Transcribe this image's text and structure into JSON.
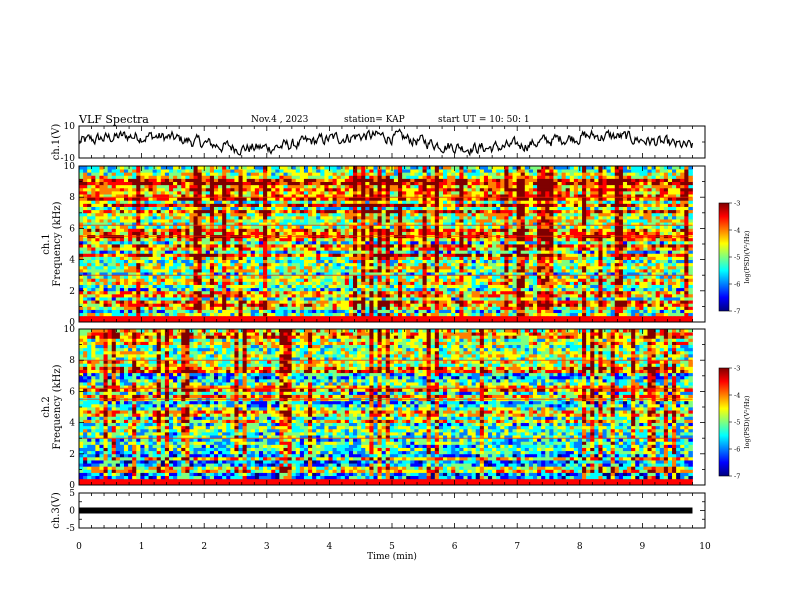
{
  "header": {
    "title": "VLF Spectra",
    "date": "Nov.4 , 2023",
    "station": "station= KAP",
    "start": "start UT = 10: 50: 1"
  },
  "colors": {
    "jet": [
      "#00007f",
      "#0000ff",
      "#007fff",
      "#00ffff",
      "#7fff7f",
      "#ffff00",
      "#ff7f00",
      "#ff0000",
      "#7f0000"
    ],
    "trace": "#000000",
    "axis": "#000000"
  },
  "chart_data": [
    {
      "type": "line",
      "name": "ch1-waveform",
      "ylabel": "ch.1(V)",
      "ylim": [
        -10,
        10
      ],
      "yticks": [
        "10",
        "-10"
      ],
      "xlim": [
        0,
        10
      ],
      "x_end": 9.8
    },
    {
      "type": "heatmap",
      "name": "ch1-spectrogram",
      "ylabel": "ch.1\nFrequency (kHz)",
      "ylabel_lines": [
        "ch.1",
        "Frequency (kHz)"
      ],
      "ylim": [
        0,
        10
      ],
      "yticks": [
        "0",
        "2",
        "4",
        "6",
        "8",
        "10"
      ],
      "xlim": [
        0,
        10
      ],
      "x_end": 9.8,
      "colorbar": {
        "label": "log(PSD)(V²/Hz)",
        "range": [
          -7,
          -3
        ],
        "ticks": [
          "-3",
          "-4",
          "-5",
          "-6",
          "-7"
        ]
      }
    },
    {
      "type": "heatmap",
      "name": "ch2-spectrogram",
      "ylabel_lines": [
        "ch.2",
        "Frequency (kHz)"
      ],
      "ylim": [
        0,
        10
      ],
      "yticks": [
        "0",
        "2",
        "4",
        "6",
        "8",
        "10"
      ],
      "xlim": [
        0,
        10
      ],
      "x_end": 9.8,
      "colorbar": {
        "label": "log(PSD)(V²/Hz)",
        "range": [
          -7,
          -3
        ],
        "ticks": [
          "-3",
          "-4",
          "-5",
          "-6",
          "-7"
        ]
      }
    },
    {
      "type": "line",
      "name": "ch3-waveform",
      "ylabel": "ch.3(V)",
      "ylim": [
        -5,
        5
      ],
      "yticks": [
        "5",
        "0",
        "-5"
      ],
      "xlim": [
        0,
        10
      ],
      "x_end": 9.8,
      "level": 0,
      "xlabel": "Time (min)",
      "xticks": [
        "0",
        "1",
        "2",
        "3",
        "4",
        "5",
        "6",
        "7",
        "8",
        "9",
        "10"
      ]
    }
  ]
}
